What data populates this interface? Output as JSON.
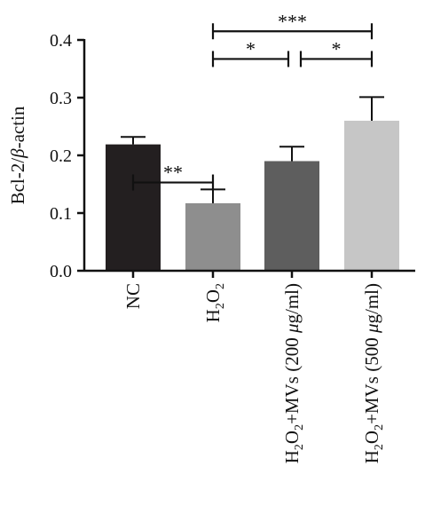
{
  "chart_data": {
    "type": "bar",
    "title": "",
    "xlabel": "",
    "ylabel": {
      "base": "Bcl-2/",
      "greek": "β",
      "tail": "-actin"
    },
    "ylim": [
      0,
      0.4
    ],
    "yticks": [
      "0.0",
      "0.1",
      "0.2",
      "0.3",
      "0.4"
    ],
    "grid": false,
    "categories": [
      {
        "parts": [
          {
            "t": "NC"
          }
        ]
      },
      {
        "parts": [
          {
            "t": "H"
          },
          {
            "t": "2",
            "sub": true
          },
          {
            "t": "O"
          },
          {
            "t": "2",
            "sub": true
          }
        ]
      },
      {
        "parts": [
          {
            "t": "H"
          },
          {
            "t": "2",
            "sub": true
          },
          {
            "t": "O"
          },
          {
            "t": "2",
            "sub": true
          },
          {
            "t": "+MVs (200 "
          },
          {
            "t": "μ",
            "italic": true
          },
          {
            "t": "g/ml)"
          }
        ]
      },
      {
        "parts": [
          {
            "t": "H"
          },
          {
            "t": "2",
            "sub": true
          },
          {
            "t": "O"
          },
          {
            "t": "2",
            "sub": true
          },
          {
            "t": "+MVs (500 "
          },
          {
            "t": "μ",
            "italic": true
          },
          {
            "t": "g/ml)"
          }
        ]
      }
    ],
    "values": [
      0.219,
      0.117,
      0.19,
      0.26
    ],
    "errors": [
      0.013,
      0.024,
      0.025,
      0.041
    ],
    "colors": [
      "#231f20",
      "#8e8e8e",
      "#5e5e5e",
      "#c6c6c6"
    ],
    "significance": [
      {
        "from": 0,
        "to": 1,
        "label": "**",
        "y": 0.153
      },
      {
        "from": 1,
        "to": 2,
        "label": "*",
        "y": 0.367
      },
      {
        "from": 2,
        "to": 3,
        "label": "*",
        "y": 0.367
      },
      {
        "from": 1,
        "to": 3,
        "label": "***",
        "y": 0.415
      }
    ]
  }
}
